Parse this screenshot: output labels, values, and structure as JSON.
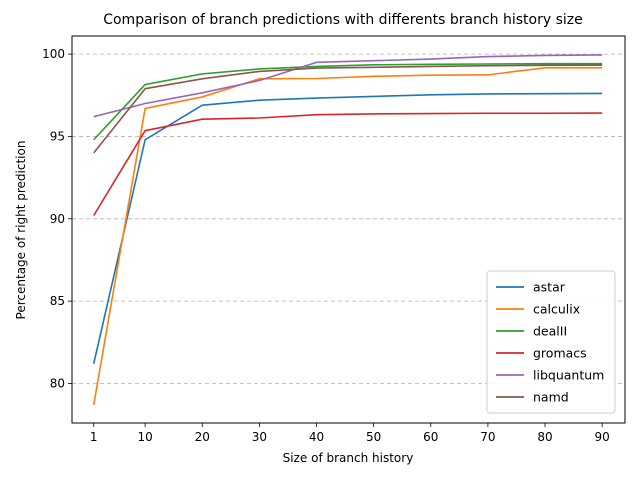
{
  "chart_data": {
    "type": "line",
    "title": "Comparison of branch predictions with differents branch history size",
    "xlabel": "Size of branch history",
    "ylabel": "Percentage of right prediction",
    "x": [
      1,
      10,
      20,
      30,
      40,
      50,
      60,
      70,
      80,
      90
    ],
    "x_ticks": [
      "1",
      "10",
      "20",
      "30",
      "40",
      "50",
      "60",
      "70",
      "80",
      "90"
    ],
    "y_ticks": [
      80,
      85,
      90,
      95,
      100
    ],
    "xlim": [
      -2.8,
      94
    ],
    "ylim": [
      77.6,
      101.1
    ],
    "grid": "y-dashed",
    "legend_position": "lower-right",
    "series": [
      {
        "name": "astar",
        "color": "#1f77b4",
        "values": [
          81.2,
          94.8,
          96.9,
          97.2,
          97.33,
          97.43,
          97.53,
          97.58,
          97.6,
          97.61
        ]
      },
      {
        "name": "calculix",
        "color": "#ff7f0e",
        "values": [
          78.7,
          96.7,
          97.4,
          98.5,
          98.52,
          98.65,
          98.72,
          98.74,
          99.17,
          99.17
        ]
      },
      {
        "name": "dealII",
        "color": "#2ca02c",
        "values": [
          94.8,
          98.15,
          98.8,
          99.1,
          99.25,
          99.35,
          99.38,
          99.4,
          99.42,
          99.42
        ]
      },
      {
        "name": "gromacs",
        "color": "#d62728",
        "values": [
          90.2,
          95.35,
          96.05,
          96.12,
          96.32,
          96.37,
          96.39,
          96.41,
          96.41,
          96.42
        ]
      },
      {
        "name": "libquantum",
        "color": "#9467bd",
        "values": [
          96.2,
          97.0,
          97.65,
          98.4,
          99.5,
          99.6,
          99.7,
          99.85,
          99.92,
          99.95
        ]
      },
      {
        "name": "namd",
        "color": "#8c564b",
        "values": [
          94.0,
          97.9,
          98.5,
          98.95,
          99.15,
          99.2,
          99.25,
          99.3,
          99.32,
          99.33
        ]
      }
    ]
  }
}
